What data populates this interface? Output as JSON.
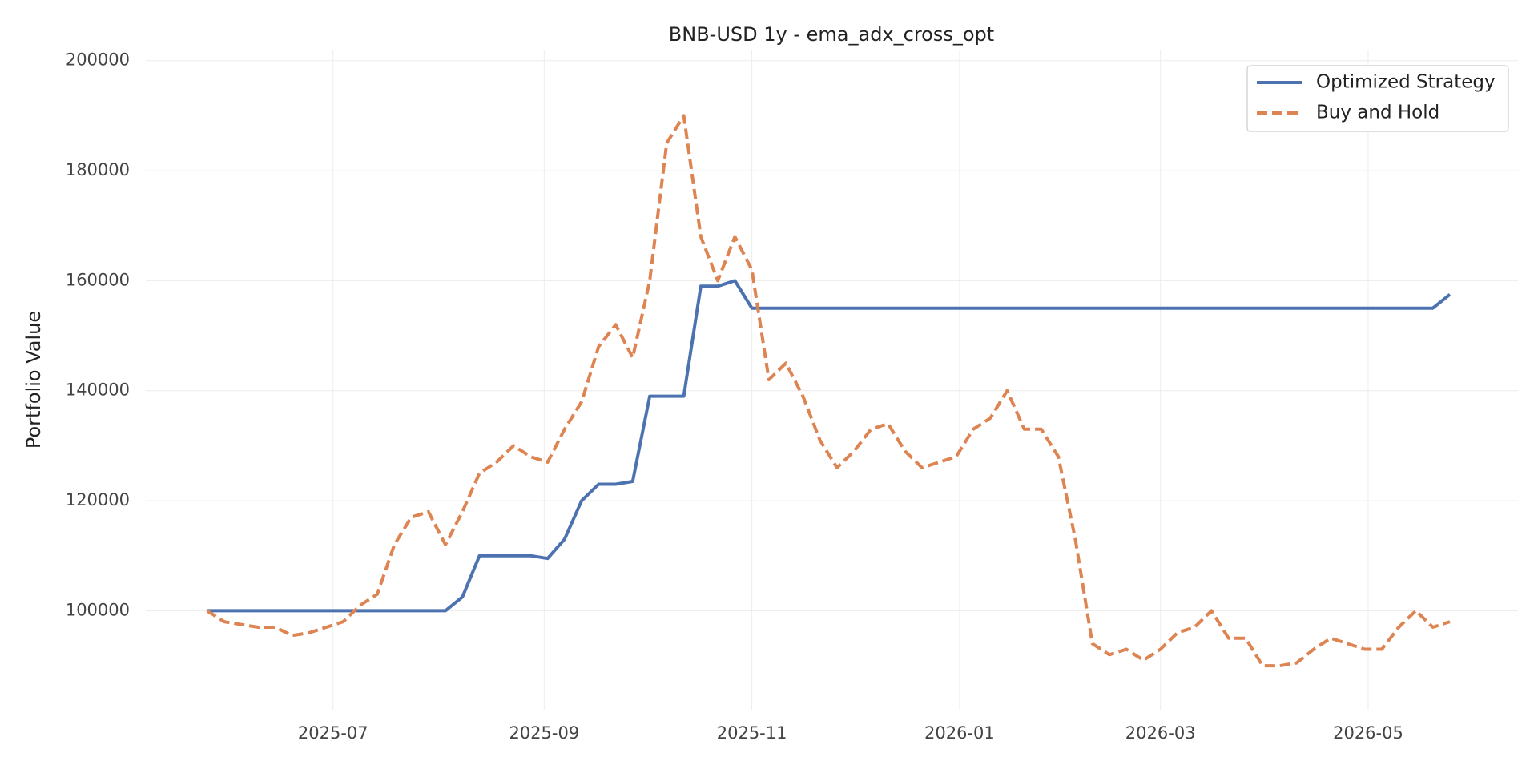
{
  "chart_data": {
    "type": "line",
    "title": "BNB-USD 1y - ema_adx_cross_opt",
    "y_label": "Portfolio Value",
    "x": [
      20233,
      20238,
      20243,
      20248,
      20253,
      20258,
      20263,
      20268,
      20273,
      20278,
      20283,
      20288,
      20293,
      20298,
      20303,
      20308,
      20313,
      20318,
      20323,
      20328,
      20333,
      20338,
      20343,
      20348,
      20353,
      20358,
      20363,
      20368,
      20373,
      20378,
      20383,
      20388,
      20393,
      20398,
      20403,
      20408,
      20413,
      20418,
      20423,
      20428,
      20433,
      20438,
      20443,
      20448,
      20453,
      20458,
      20463,
      20468,
      20473,
      20478,
      20483,
      20488,
      20493,
      20498,
      20503,
      20508,
      20513,
      20518,
      20523,
      20528,
      20533,
      20538,
      20543,
      20548,
      20553,
      20558,
      20563,
      20568,
      20573,
      20578,
      20583,
      20588,
      20593,
      20598
    ],
    "series": [
      {
        "name": "Optimized Strategy",
        "color": "#4c72b0",
        "linestyle": "solid",
        "values": [
          100000,
          100000,
          100000,
          100000,
          100000,
          100000,
          100000,
          100000,
          100000,
          100000,
          100000,
          100000,
          100000,
          100000,
          100000,
          102500,
          110000,
          110000,
          110000,
          110000,
          109500,
          113000,
          120000,
          123000,
          123000,
          123500,
          139000,
          139000,
          139000,
          159000,
          159000,
          160000,
          155000,
          155000,
          155000,
          155000,
          155000,
          155000,
          155000,
          155000,
          155000,
          155000,
          155000,
          155000,
          155000,
          155000,
          155000,
          155000,
          155000,
          155000,
          155000,
          155000,
          155000,
          155000,
          155000,
          155000,
          155000,
          155000,
          155000,
          155000,
          155000,
          155000,
          155000,
          155000,
          155000,
          155000,
          155000,
          155000,
          155000,
          155000,
          155000,
          155000,
          155000,
          157500
        ]
      },
      {
        "name": "Buy and Hold",
        "color": "#dd8452",
        "linestyle": "dashed",
        "values": [
          100000,
          98000,
          97500,
          97000,
          97000,
          95500,
          96000,
          97000,
          98000,
          101000,
          103000,
          112000,
          117000,
          118000,
          112000,
          118000,
          125000,
          127000,
          130000,
          128000,
          127000,
          133000,
          138000,
          148000,
          152000,
          146000,
          160000,
          185000,
          190000,
          168000,
          160000,
          168000,
          162000,
          142000,
          145000,
          139000,
          131000,
          126000,
          129000,
          133000,
          134000,
          129000,
          126000,
          127000,
          128000,
          133000,
          135000,
          140000,
          133000,
          133000,
          128000,
          113000,
          94000,
          92000,
          93000,
          91000,
          93000,
          96000,
          97000,
          100000,
          95000,
          95000,
          90000,
          90000,
          90500,
          93000,
          95000,
          94000,
          93000,
          93000,
          97000,
          100000,
          97000,
          98000
        ]
      }
    ],
    "xlim": [
      20215,
      20618
    ],
    "xticks": [
      {
        "value": 20270,
        "label": "2025-07"
      },
      {
        "value": 20332,
        "label": "2025-09"
      },
      {
        "value": 20393,
        "label": "2025-11"
      },
      {
        "value": 20454,
        "label": "2026-01"
      },
      {
        "value": 20513,
        "label": "2026-03"
      },
      {
        "value": 20574,
        "label": "2026-05"
      }
    ],
    "ylim": [
      82000,
      202000
    ],
    "yticks": [
      100000,
      120000,
      140000,
      160000,
      180000,
      200000
    ],
    "grid": true,
    "legend": "upper right"
  }
}
